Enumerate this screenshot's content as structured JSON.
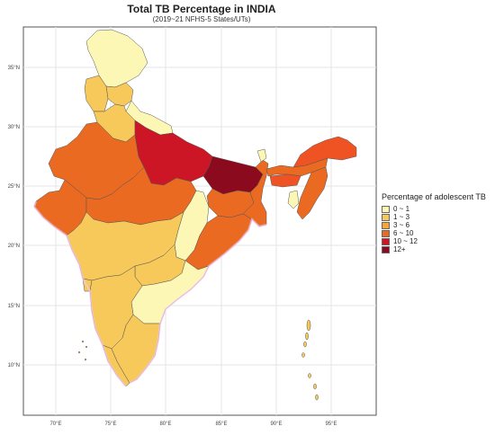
{
  "map": {
    "title": "Total TB Percentage in INDIA",
    "subtitle": "(2019~21 NFHS-5 States/UTs)",
    "lat_ticks": [
      "10°N",
      "15°N",
      "20°N",
      "25°N",
      "30°N",
      "35°N"
    ],
    "lon_ticks": [
      "70°E",
      "75°E",
      "80°E",
      "85°E",
      "90°E",
      "95°E"
    ]
  },
  "legend": {
    "title": "Percentage of adolescent TB",
    "items": [
      {
        "label": "0 ~ 1",
        "color": "#fdf7b6"
      },
      {
        "label": "1 ~ 3",
        "color": "#f7c85a"
      },
      {
        "label": "3 ~ 6",
        "color": "#f3a63c"
      },
      {
        "label": "6 ~ 10",
        "color": "#ea6a22"
      },
      {
        "label": "10 ~ 12",
        "color": "#cc1626"
      },
      {
        "label": "12+",
        "color": "#8b0a1d"
      }
    ]
  },
  "colors": {
    "panel_border": "#555555",
    "grid": "#e6e6e6",
    "state_border": "#555555",
    "outline_pink": "#f4c9f0"
  }
}
